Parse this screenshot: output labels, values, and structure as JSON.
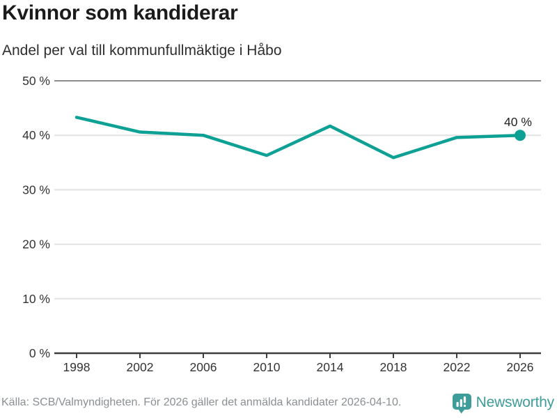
{
  "chart_data": {
    "type": "line",
    "title": "Kvinnor som kandiderar",
    "subtitle": "Andel per val till kommunfullmäktige i Håbo",
    "x": [
      1998,
      2002,
      2006,
      2010,
      2014,
      2018,
      2022,
      2026
    ],
    "series": [
      {
        "values": [
          43.3,
          40.6,
          40.0,
          36.3,
          41.7,
          35.9,
          39.6,
          40.0
        ]
      }
    ],
    "ylim": [
      0,
      50
    ],
    "yticks": [
      0,
      10,
      20,
      30,
      40,
      50
    ],
    "ytick_suffix": " %",
    "grid": true,
    "legend": "none",
    "line_color": "#0da094",
    "end_point_label": "40 %"
  },
  "footer": {
    "source": "Källa: SCB/Valmyndigheten. För 2026 gäller det anmälda kandidater 2026-04-10.",
    "brand": "Newsworthy",
    "brand_color": "#3e9c99"
  }
}
